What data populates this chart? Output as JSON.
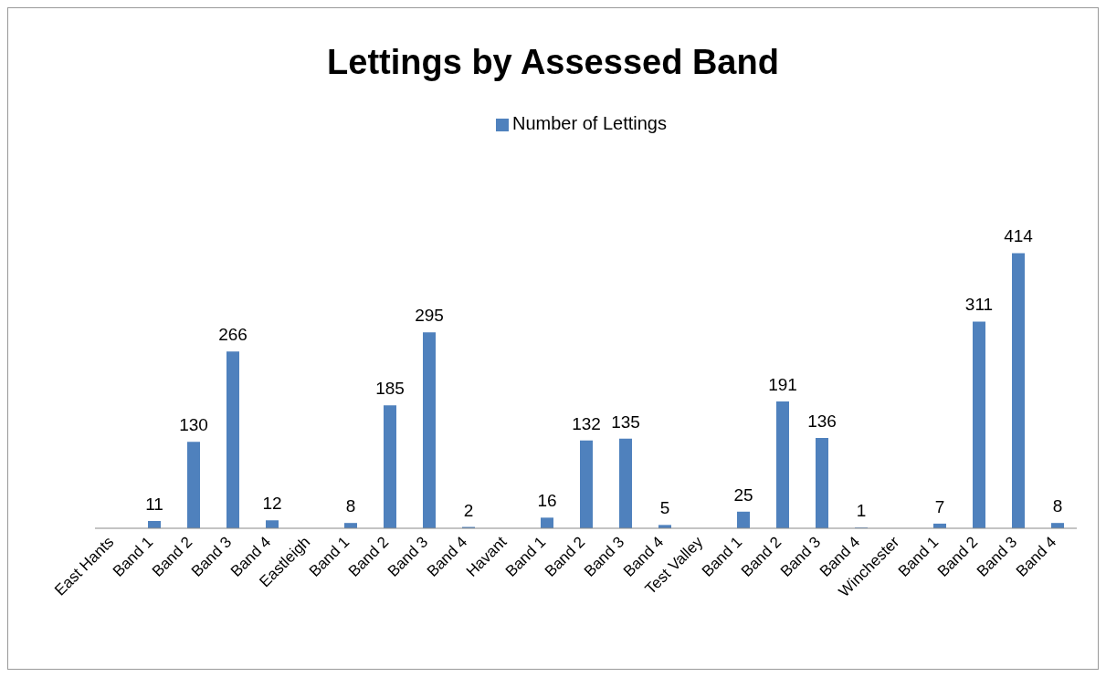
{
  "chart_data": {
    "type": "bar",
    "title": "Lettings by Assessed Band",
    "categories": [
      "East Hants",
      "Band 1",
      "Band 2",
      "Band 3",
      "Band 4",
      "Eastleigh",
      "Band 1",
      "Band 2",
      "Band 3",
      "Band 4",
      "Havant",
      "Band 1",
      "Band 2",
      "Band 3",
      "Band 4",
      "Test Valley",
      "Band 1",
      "Band 2",
      "Band 3",
      "Band 4",
      "Winchester",
      "Band 1",
      "Band 2",
      "Band 3",
      "Band 4"
    ],
    "series": [
      {
        "name": "Number of Lettings",
        "color": "#4f81bd",
        "values": [
          null,
          11,
          130,
          266,
          12,
          null,
          8,
          185,
          295,
          2,
          null,
          16,
          132,
          135,
          5,
          null,
          25,
          191,
          136,
          1,
          null,
          7,
          311,
          414,
          8
        ]
      }
    ],
    "data_labels": true,
    "legend": "top"
  }
}
